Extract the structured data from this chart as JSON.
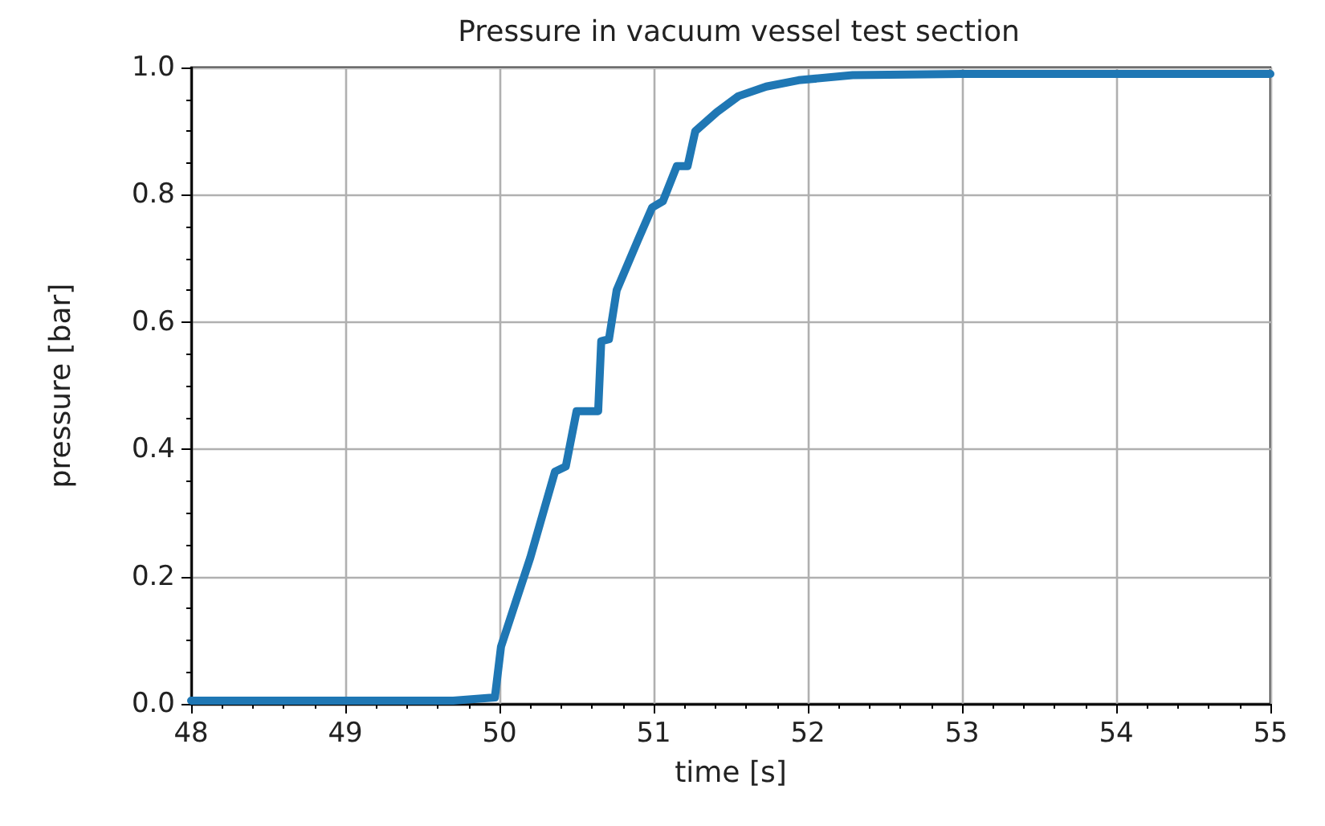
{
  "chart_data": {
    "type": "line",
    "title": "Pressure in vacuum vessel test section",
    "xlabel": "time [s]",
    "ylabel": "pressure [bar]",
    "series": [
      {
        "color": "#1f77b4",
        "x": [
          48,
          49,
          49.7,
          49.97,
          50.01,
          50.2,
          50.36,
          50.43,
          50.5,
          50.64,
          50.66,
          50.71,
          50.76,
          50.9,
          50.99,
          51.06,
          51.15,
          51.22,
          51.27,
          51.41,
          51.55,
          51.73,
          51.94,
          52.29,
          53,
          54,
          55
        ],
        "values": [
          0.005,
          0.005,
          0.005,
          0.01,
          0.09,
          0.23,
          0.365,
          0.373,
          0.46,
          0.46,
          0.57,
          0.573,
          0.65,
          0.73,
          0.78,
          0.79,
          0.845,
          0.845,
          0.9,
          0.93,
          0.955,
          0.97,
          0.98,
          0.988,
          0.99,
          0.99,
          0.99
        ]
      }
    ],
    "xlim": [
      48,
      55
    ],
    "xticks": [
      48,
      49,
      50,
      51,
      52,
      53,
      54,
      55
    ],
    "ylim": [
      0,
      1
    ],
    "yticks": [
      {
        "value": 0,
        "label": "0.0"
      },
      0.2,
      0.4,
      0.6,
      0.8,
      {
        "value": 1,
        "label": "1.0"
      }
    ],
    "grid": true,
    "marker": "none",
    "line_style": "solid"
  }
}
